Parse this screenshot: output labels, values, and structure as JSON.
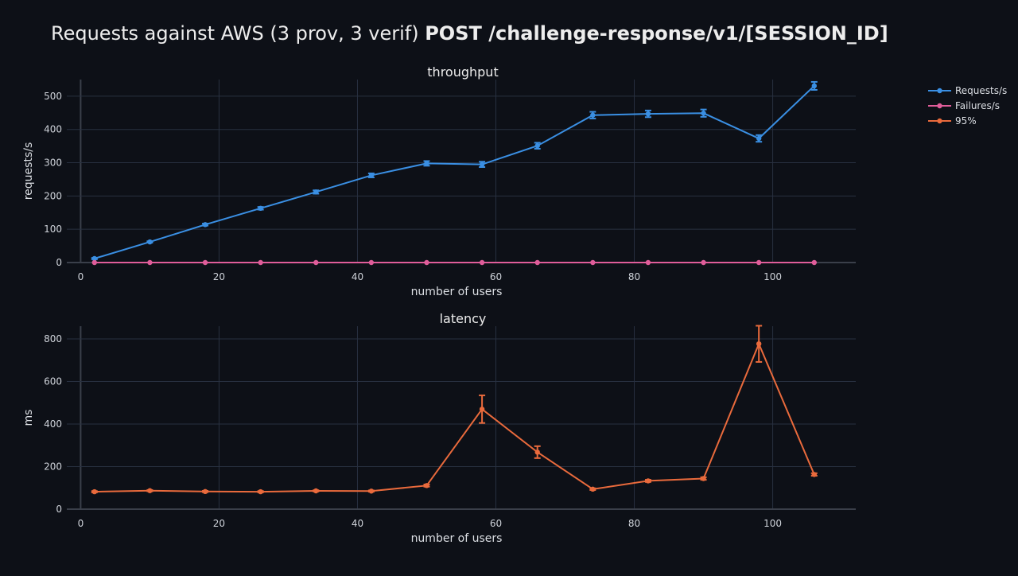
{
  "title": {
    "prefix": "Requests against AWS (3 prov, 3 verif) ",
    "bold": "POST /challenge-response/v1/[SESSION_ID]"
  },
  "legend": {
    "placement": "top-right",
    "items": [
      {
        "label": "Requests/s",
        "color": "#3a8fe3"
      },
      {
        "label": "Failures/s",
        "color": "#e05d9a"
      },
      {
        "label": "95%",
        "color": "#e96a3c"
      }
    ]
  },
  "chart_data": [
    {
      "type": "line",
      "title": "throughput",
      "xlabel": "number of users",
      "ylabel": "requests/s",
      "xlim": [
        -2,
        112
      ],
      "ylim": [
        0,
        550
      ],
      "xticks": [
        0,
        20,
        40,
        60,
        80,
        100
      ],
      "yticks": [
        0,
        100,
        200,
        300,
        400,
        500
      ],
      "grid": true,
      "x": [
        2,
        10,
        18,
        26,
        34,
        42,
        50,
        58,
        66,
        74,
        82,
        90,
        98,
        106
      ],
      "series": [
        {
          "name": "Requests/s",
          "color": "#3a8fe3",
          "values": [
            12,
            62,
            114,
            163,
            212,
            262,
            298,
            295,
            351,
            443,
            447,
            449,
            373,
            531
          ],
          "error": [
            2,
            2,
            3,
            4,
            5,
            6,
            7,
            8,
            9,
            10,
            10,
            11,
            10,
            12
          ]
        },
        {
          "name": "Failures/s",
          "color": "#e05d9a",
          "values": [
            0,
            0,
            0,
            0,
            0,
            0,
            0,
            0,
            0,
            0,
            0,
            0,
            0,
            0
          ],
          "error": [
            0,
            0,
            0,
            0,
            0,
            0,
            0,
            0,
            0,
            0,
            0,
            0,
            0,
            0
          ]
        }
      ]
    },
    {
      "type": "line",
      "title": "latency",
      "xlabel": "number of users",
      "ylabel": "ms",
      "xlim": [
        -2,
        112
      ],
      "ylim": [
        0,
        860
      ],
      "xticks": [
        0,
        20,
        40,
        60,
        80,
        100
      ],
      "yticks": [
        0,
        200,
        400,
        600,
        800
      ],
      "grid": true,
      "x": [
        2,
        10,
        18,
        26,
        34,
        42,
        50,
        58,
        66,
        74,
        82,
        90,
        98,
        106
      ],
      "series": [
        {
          "name": "95%",
          "color": "#e96a3c",
          "values": [
            82,
            87,
            83,
            82,
            86,
            85,
            111,
            470,
            268,
            94,
            133,
            144,
            777,
            163
          ],
          "error": [
            3,
            3,
            3,
            3,
            3,
            3,
            5,
            65,
            28,
            4,
            5,
            6,
            85,
            6
          ]
        }
      ]
    }
  ]
}
